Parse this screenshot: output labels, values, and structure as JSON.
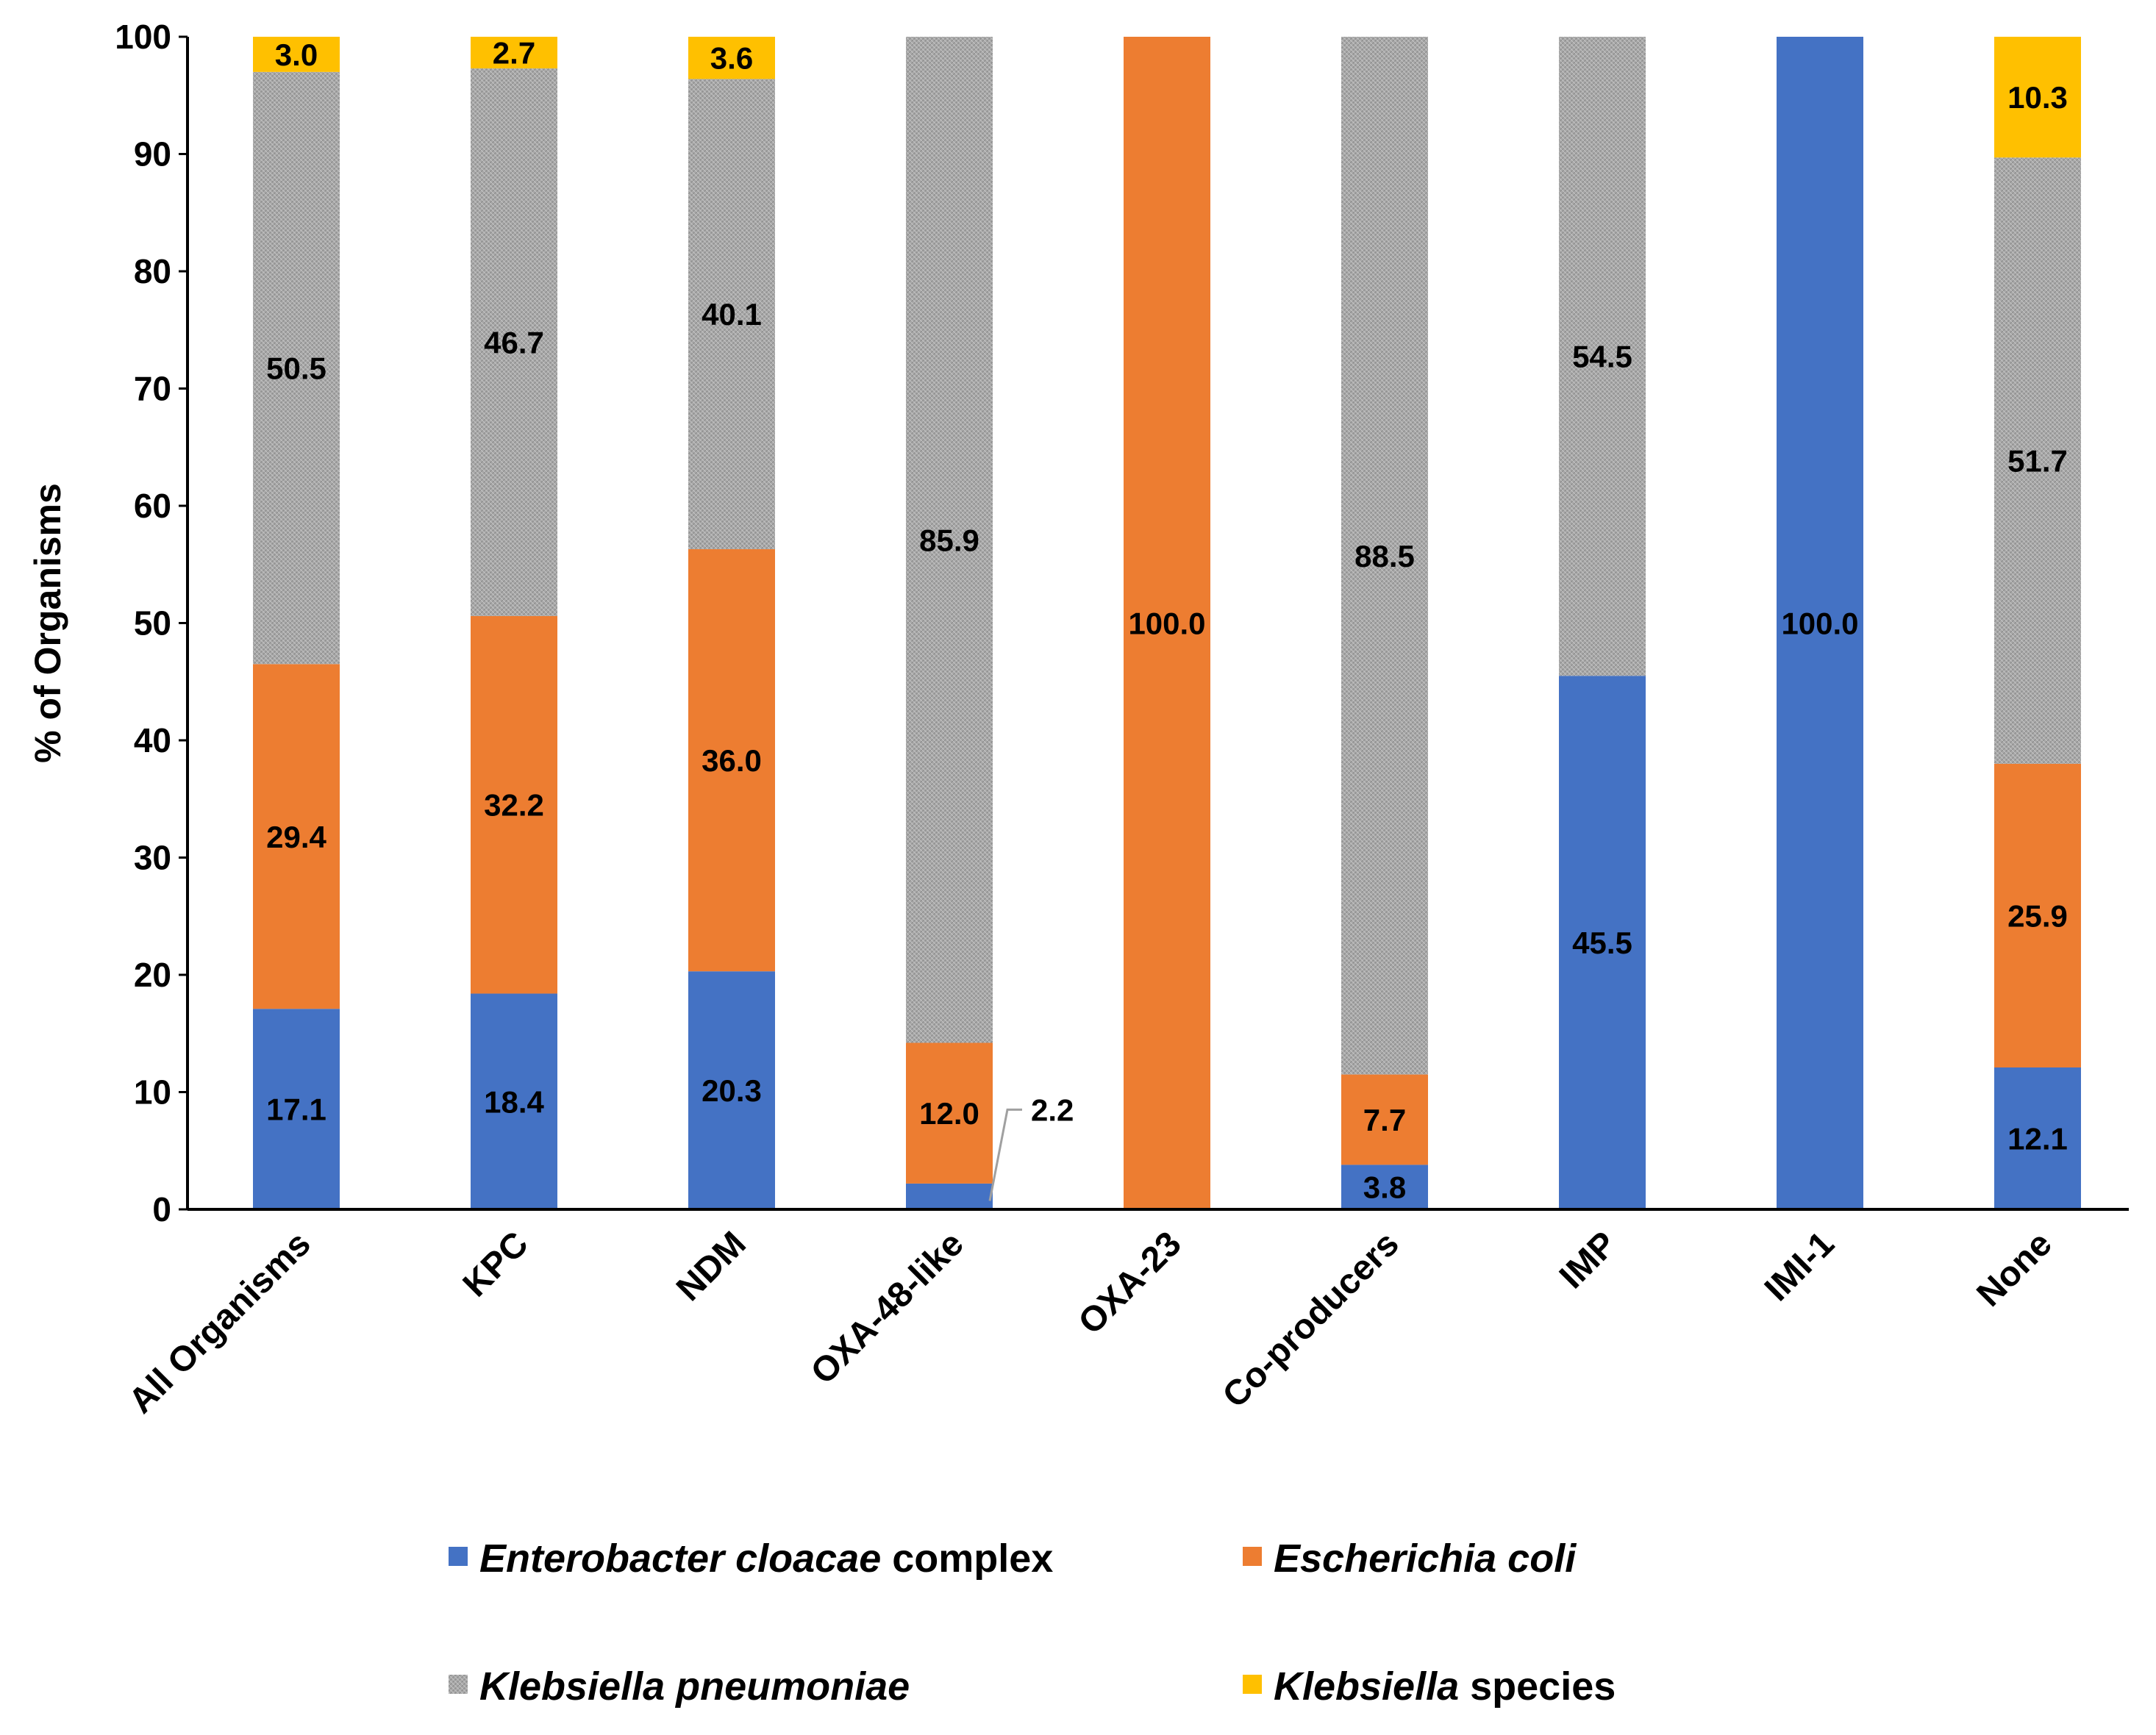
{
  "chart_data": {
    "type": "bar",
    "stacked": true,
    "title": "",
    "xlabel": "",
    "ylabel": "% of Organisms",
    "ylim": [
      0,
      100
    ],
    "yticks": [
      0,
      10,
      20,
      30,
      40,
      50,
      60,
      70,
      80,
      90,
      100
    ],
    "grid": false,
    "legend_position": "bottom",
    "categories": [
      "All Organisms",
      "KPC",
      "NDM",
      "OXA-48-like",
      "OXA-23",
      "Co-producers",
      "IMP",
      "IMI-1",
      "None"
    ],
    "series": [
      {
        "name": "Enterobacter cloacae complex",
        "color": "#4472c4",
        "values": [
          17.1,
          18.4,
          20.3,
          2.2,
          0,
          3.8,
          45.5,
          100.0,
          12.1
        ],
        "labels": [
          "17.1",
          "18.4",
          "20.3",
          "2.2",
          null,
          "3.8",
          "45.5",
          "100.0",
          "12.1"
        ]
      },
      {
        "name": "Escherichia coli",
        "color": "#ed7d31",
        "values": [
          29.4,
          32.2,
          36.0,
          12.0,
          100.0,
          7.7,
          0,
          0,
          25.9
        ],
        "labels": [
          "29.4",
          "32.2",
          "36.0",
          "12.0",
          "100.0",
          "7.7",
          null,
          null,
          "25.9"
        ]
      },
      {
        "name": "Klebsiella pneumoniae",
        "color": "#a5a5a5",
        "values": [
          50.5,
          46.7,
          40.1,
          85.9,
          0,
          88.5,
          54.5,
          0,
          51.7
        ],
        "labels": [
          "50.5",
          "46.7",
          "40.1",
          "85.9",
          null,
          "88.5",
          "54.5",
          null,
          "51.7"
        ]
      },
      {
        "name": "Klebsiella species",
        "color": "#ffc000",
        "values": [
          3.0,
          2.7,
          3.6,
          0,
          0,
          0,
          0,
          0,
          10.3
        ],
        "labels": [
          "3.0",
          "2.7",
          "3.6",
          null,
          null,
          null,
          null,
          null,
          "10.3"
        ]
      }
    ],
    "legend": [
      {
        "italic": "Enterobacter cloacae",
        "plain": " complex"
      },
      {
        "italic": "Escherichia coli",
        "plain": ""
      },
      {
        "italic": "Klebsiella pneumoniae",
        "plain": ""
      },
      {
        "italic": "Klebsiella",
        "plain": " species"
      }
    ]
  }
}
